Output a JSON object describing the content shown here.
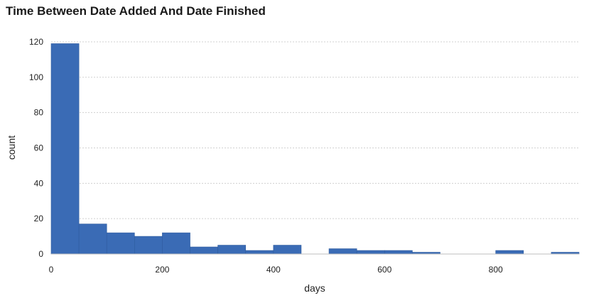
{
  "chart_data": {
    "type": "bar",
    "title": "Time Between Date Added And Date Finished",
    "xlabel": "days",
    "ylabel": "count",
    "xlim": [
      0,
      950
    ],
    "ylim": [
      0,
      120
    ],
    "xticks": [
      0,
      200,
      400,
      600,
      800
    ],
    "yticks": [
      0,
      20,
      40,
      60,
      80,
      100,
      120
    ],
    "grid": "horizontal",
    "bar_color": "#3a6bb5",
    "bins": [
      {
        "x0": 0,
        "x1": 50,
        "value": 119
      },
      {
        "x0": 50,
        "x1": 100,
        "value": 17
      },
      {
        "x0": 100,
        "x1": 150,
        "value": 12
      },
      {
        "x0": 150,
        "x1": 200,
        "value": 10
      },
      {
        "x0": 200,
        "x1": 250,
        "value": 12
      },
      {
        "x0": 250,
        "x1": 300,
        "value": 4
      },
      {
        "x0": 300,
        "x1": 350,
        "value": 5
      },
      {
        "x0": 350,
        "x1": 400,
        "value": 2
      },
      {
        "x0": 400,
        "x1": 450,
        "value": 5
      },
      {
        "x0": 500,
        "x1": 550,
        "value": 3
      },
      {
        "x0": 550,
        "x1": 600,
        "value": 2
      },
      {
        "x0": 600,
        "x1": 650,
        "value": 2
      },
      {
        "x0": 650,
        "x1": 700,
        "value": 1
      },
      {
        "x0": 800,
        "x1": 850,
        "value": 2
      },
      {
        "x0": 900,
        "x1": 950,
        "value": 1
      }
    ]
  }
}
